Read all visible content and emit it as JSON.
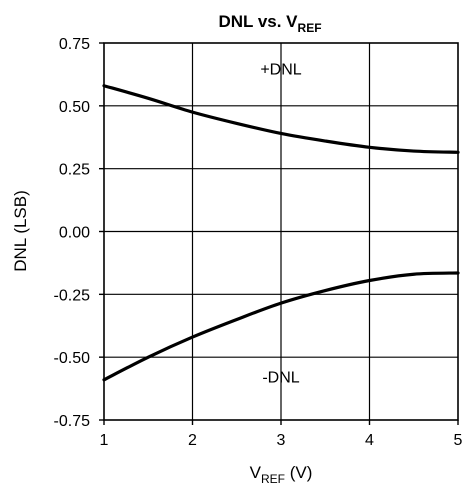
{
  "chart_data": {
    "type": "line",
    "title": {
      "main": "DNL vs. V",
      "sub": "REF"
    },
    "xlabel": {
      "main": "V",
      "sub": "REF",
      "suffix": " (V)"
    },
    "ylabel": "DNL (LSB)",
    "xlim": [
      1,
      5
    ],
    "ylim": [
      -0.75,
      0.75
    ],
    "x_ticks": [
      1,
      2,
      3,
      4,
      5
    ],
    "x_tick_labels": [
      "1",
      "2",
      "3",
      "4",
      "5"
    ],
    "y_ticks": [
      0.75,
      0.5,
      0.25,
      0.0,
      -0.25,
      -0.5,
      -0.75
    ],
    "y_tick_labels": [
      "0.75",
      "0.50",
      "0.25",
      "0.00",
      "-0.25",
      "-0.50",
      "-0.75"
    ],
    "grid": true,
    "legend": "none",
    "series": [
      {
        "name": "+DNL",
        "x": [
          1.0,
          1.5,
          2.0,
          2.5,
          3.0,
          3.5,
          4.0,
          4.5,
          5.0
        ],
        "y": [
          0.58,
          0.53,
          0.475,
          0.43,
          0.39,
          0.36,
          0.335,
          0.32,
          0.315
        ]
      },
      {
        "name": "-DNL",
        "x": [
          1.0,
          1.5,
          2.0,
          2.5,
          3.0,
          3.5,
          4.0,
          4.5,
          5.0
        ],
        "y": [
          -0.59,
          -0.5,
          -0.42,
          -0.35,
          -0.285,
          -0.235,
          -0.195,
          -0.17,
          -0.165
        ]
      }
    ],
    "annotations": [
      {
        "text": "+DNL",
        "x": 3.0,
        "y": 0.625
      },
      {
        "text": "-DNL",
        "x": 3.0,
        "y": -0.6
      }
    ]
  }
}
